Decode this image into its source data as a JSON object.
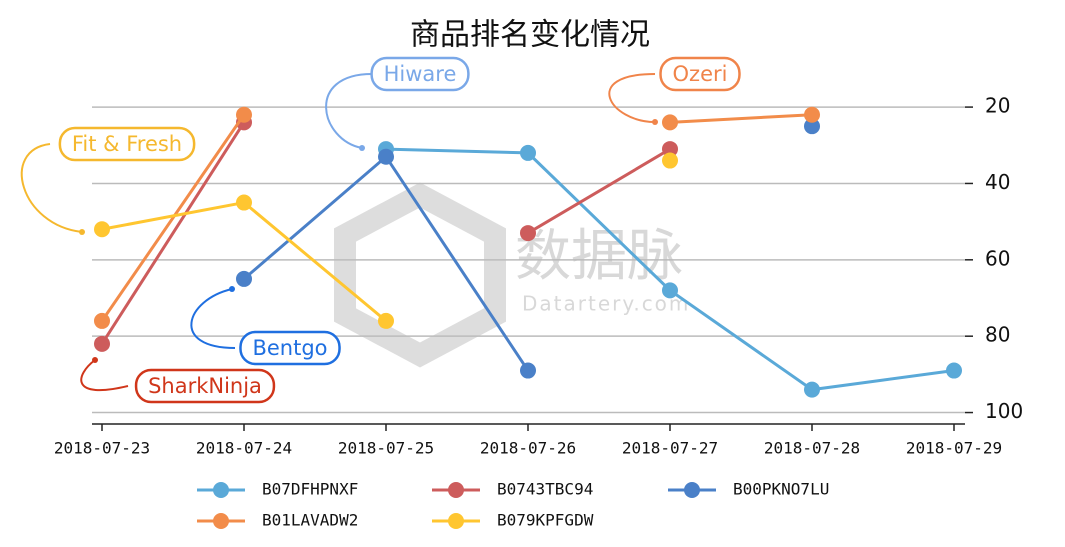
{
  "chart_data": {
    "type": "line",
    "title": "商品排名变化情况",
    "x": [
      "2018-07-23",
      "2018-07-24",
      "2018-07-25",
      "2018-07-26",
      "2018-07-27",
      "2018-07-28",
      "2018-07-29"
    ],
    "series": [
      {
        "name": "B07DFHPNXF",
        "color": "#5aa9d8",
        "values": [
          null,
          null,
          31,
          32,
          68,
          94,
          89
        ]
      },
      {
        "name": "B0743TBC94",
        "color": "#cd5c5c",
        "values": [
          82,
          24,
          null,
          53,
          31,
          null,
          null
        ]
      },
      {
        "name": "B00PKNO7LU",
        "color": "#4a80c8",
        "values": [
          null,
          65,
          33,
          89,
          null,
          25,
          null
        ]
      },
      {
        "name": "B01LAVADW2",
        "color": "#f28c4a",
        "values": [
          76,
          22,
          null,
          null,
          24,
          22,
          null
        ]
      },
      {
        "name": "B079KPFGDW",
        "color": "#ffc630",
        "values": [
          52,
          45,
          76,
          null,
          34,
          null,
          null
        ]
      }
    ],
    "ylim": [
      103,
      15
    ],
    "yticks": [
      20,
      40,
      60,
      80,
      100
    ],
    "y_axis_side": "right",
    "grid": true,
    "annotations": [
      {
        "text": "Hiware",
        "color": "#7aa8e8"
      },
      {
        "text": "Ozeri",
        "color": "#f0844a"
      },
      {
        "text": "Fit & Fresh",
        "color": "#f5b82e"
      },
      {
        "text": "Bentgo",
        "color": "#1f6fe0"
      },
      {
        "text": "SharkNinja",
        "color": "#d0361a"
      }
    ],
    "watermark": {
      "text": "数据脉",
      "subtext": "Datartery.com"
    }
  }
}
